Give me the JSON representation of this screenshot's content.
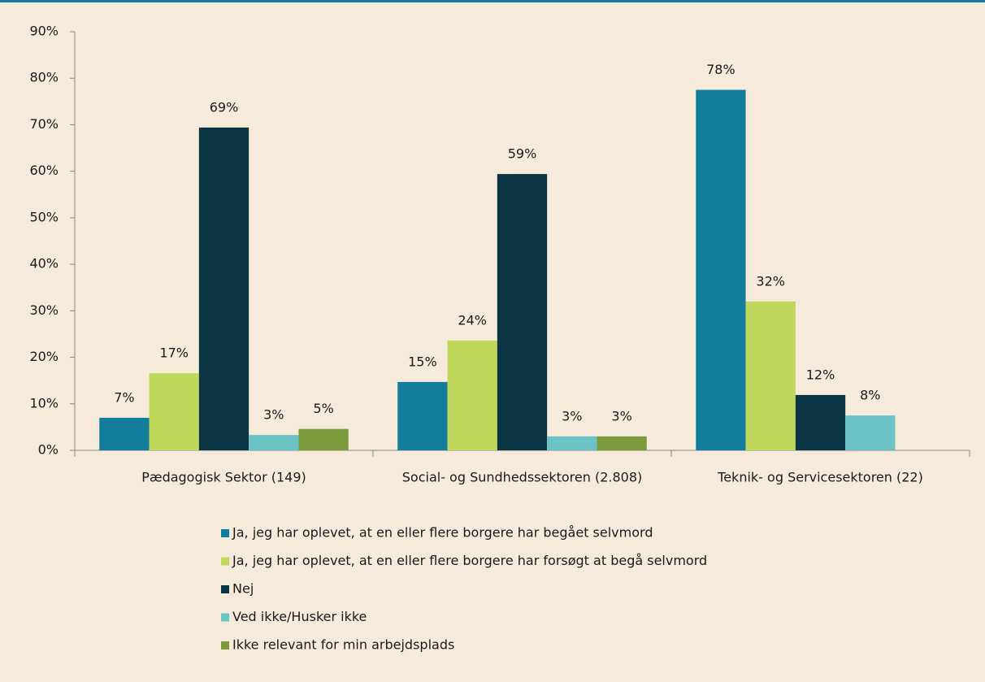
{
  "chart_data": {
    "type": "bar",
    "categories": [
      "Pædagogisk Sektor (149)",
      "Social- og Sundhedssektoren (2.808)",
      "Teknik- og Servicesektoren (22)"
    ],
    "series": [
      {
        "name": "Ja, jeg har oplevet, at en eller flere borgere har begået selvmord",
        "color": "#127e9b",
        "values": [
          7,
          14.7,
          77.5
        ],
        "value_labels": [
          "7%",
          "15%",
          "78%"
        ]
      },
      {
        "name": "Ja, jeg har oplevet, at en eller flere borgere har forsøgt at begå selvmord",
        "color": "#bfd75b",
        "values": [
          16.6,
          23.6,
          32
        ],
        "value_labels": [
          "17%",
          "24%",
          "32%"
        ]
      },
      {
        "name": "Nej",
        "color": "#0b3543",
        "values": [
          69.4,
          59.4,
          11.9
        ],
        "value_labels": [
          "69%",
          "59%",
          "12%"
        ]
      },
      {
        "name": "Ved ikke/Husker ikke",
        "color": "#6cc3c6",
        "values": [
          3.3,
          3,
          7.5
        ],
        "value_labels": [
          "3%",
          "3%",
          "8%"
        ]
      },
      {
        "name": "Ikke relevant for min arbejdsplads",
        "color": "#7b9a3b",
        "values": [
          4.6,
          3,
          null
        ],
        "value_labels": [
          "5%",
          "3%",
          null
        ]
      }
    ],
    "ylim": [
      0,
      90
    ],
    "yticks": [
      {
        "value": 0,
        "label": "0%"
      },
      {
        "value": 10,
        "label": "10%"
      },
      {
        "value": 20,
        "label": "20%"
      },
      {
        "value": 30,
        "label": "30%"
      },
      {
        "value": 40,
        "label": "40%"
      },
      {
        "value": 50,
        "label": "50%"
      },
      {
        "value": 60,
        "label": "60%"
      },
      {
        "value": 70,
        "label": "70%"
      },
      {
        "value": 80,
        "label": "80%"
      },
      {
        "value": 90,
        "label": "90%"
      }
    ],
    "grid": false,
    "legend": "bottom"
  }
}
